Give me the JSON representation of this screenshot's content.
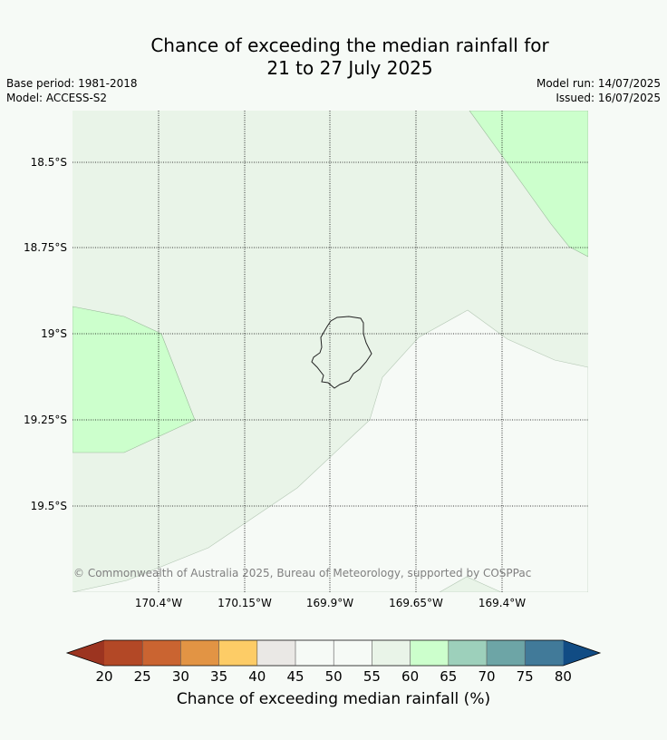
{
  "title": {
    "line1": "Chance of exceeding the median rainfall for",
    "line2": "21 to 27 July 2025"
  },
  "meta": {
    "base_period": "Base period: 1981-2018",
    "model": "Model: ACCESS-S2",
    "model_run": "Model run: 14/07/2025",
    "issued": "Issued: 16/07/2025"
  },
  "map": {
    "lon_labels": [
      "170.4°W",
      "170.15°W",
      "169.9°W",
      "169.65°W",
      "169.4°W"
    ],
    "lat_labels": [
      "18.5°S",
      "18.75°S",
      "19°S",
      "19.25°S",
      "19.5°S"
    ],
    "copyright": "© Commonwealth of Australia 2025, Bureau of Meteorology, supported by COSPPac"
  },
  "colorbar": {
    "label": "Chance of exceeding median rainfall (%)",
    "ticks": [
      "20",
      "25",
      "30",
      "35",
      "40",
      "45",
      "50",
      "55",
      "60",
      "65",
      "70",
      "75",
      "80"
    ],
    "under_color": "#9c3420",
    "over_color": "#114c84",
    "colors": [
      "#b34826",
      "#ca6431",
      "#e29444",
      "#fdcc66",
      "#eae8e5",
      "#f6faf6",
      "#f6faf6",
      "#e9f4e8",
      "#ccffcc",
      "#9dd0bb",
      "#6da5a6",
      "#417a99"
    ]
  },
  "legend_colors": {
    "land_outline": "#222222",
    "grid": "#000000"
  }
}
